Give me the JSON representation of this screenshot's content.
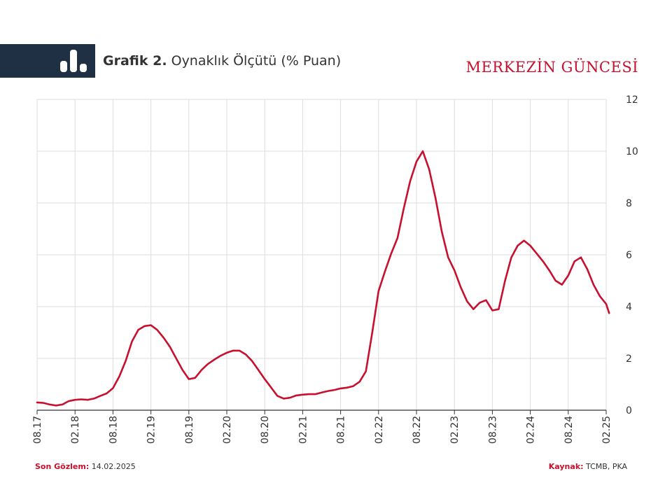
{
  "header": {
    "title_bold": "Grafik 2.",
    "title_rest": "Oynaklık Ölçütü (% Puan)",
    "brand": "MERKEZİN GÜNCESİ",
    "band_color": "#1f2f44",
    "icon": "bar-chart-icon"
  },
  "footer": {
    "last_obs_label": "Son Gözlem:",
    "last_obs_value": "14.02.2025",
    "source_label": "Kaynak:",
    "source_value": "TCMB, PKA"
  },
  "chart_data": {
    "type": "line",
    "ylim": [
      0,
      12
    ],
    "yticks": [
      0,
      2,
      4,
      6,
      8,
      10,
      12
    ],
    "y_axis_side": "right",
    "grid": true,
    "x_tick_labels": [
      "08.17",
      "02.18",
      "08.18",
      "02.19",
      "08.19",
      "02.20",
      "08.20",
      "02.21",
      "08.21",
      "02.22",
      "08.22",
      "02.23",
      "08.23",
      "02.24",
      "08.24",
      "02.25"
    ],
    "x_range": [
      "2017-08",
      "2025-02"
    ],
    "series": [
      {
        "color": "#c8102e",
        "points": [
          [
            "2017-08",
            0.3
          ],
          [
            "2017-09",
            0.28
          ],
          [
            "2017-10",
            0.22
          ],
          [
            "2017-11",
            0.18
          ],
          [
            "2017-12",
            0.22
          ],
          [
            "2018-01",
            0.35
          ],
          [
            "2018-02",
            0.4
          ],
          [
            "2018-03",
            0.42
          ],
          [
            "2018-04",
            0.4
          ],
          [
            "2018-05",
            0.45
          ],
          [
            "2018-06",
            0.55
          ],
          [
            "2018-07",
            0.65
          ],
          [
            "2018-08",
            0.85
          ],
          [
            "2018-09",
            1.3
          ],
          [
            "2018-10",
            1.9
          ],
          [
            "2018-11",
            2.65
          ],
          [
            "2018-12",
            3.1
          ],
          [
            "2019-01",
            3.25
          ],
          [
            "2019-02",
            3.28
          ],
          [
            "2019-03",
            3.1
          ],
          [
            "2019-04",
            2.8
          ],
          [
            "2019-05",
            2.45
          ],
          [
            "2019-06",
            2.0
          ],
          [
            "2019-07",
            1.55
          ],
          [
            "2019-08",
            1.2
          ],
          [
            "2019-09",
            1.25
          ],
          [
            "2019-10",
            1.55
          ],
          [
            "2019-11",
            1.78
          ],
          [
            "2019-12",
            1.95
          ],
          [
            "2020-01",
            2.1
          ],
          [
            "2020-02",
            2.22
          ],
          [
            "2020-03",
            2.3
          ],
          [
            "2020-04",
            2.3
          ],
          [
            "2020-05",
            2.15
          ],
          [
            "2020-06",
            1.9
          ],
          [
            "2020-07",
            1.55
          ],
          [
            "2020-08",
            1.2
          ],
          [
            "2020-09",
            0.88
          ],
          [
            "2020-10",
            0.55
          ],
          [
            "2020-11",
            0.45
          ],
          [
            "2020-12",
            0.48
          ],
          [
            "2021-01",
            0.57
          ],
          [
            "2021-02",
            0.6
          ],
          [
            "2021-03",
            0.62
          ],
          [
            "2021-04",
            0.62
          ],
          [
            "2021-05",
            0.68
          ],
          [
            "2021-06",
            0.74
          ],
          [
            "2021-07",
            0.78
          ],
          [
            "2021-08",
            0.84
          ],
          [
            "2021-09",
            0.87
          ],
          [
            "2021-10",
            0.93
          ],
          [
            "2021-11",
            1.1
          ],
          [
            "2021-12",
            1.5
          ],
          [
            "2022-01",
            3.0
          ],
          [
            "2022-02",
            4.6
          ],
          [
            "2022-03",
            5.35
          ],
          [
            "2022-04",
            6.05
          ],
          [
            "2022-05",
            6.65
          ],
          [
            "2022-06",
            7.8
          ],
          [
            "2022-07",
            8.85
          ],
          [
            "2022-08",
            9.6
          ],
          [
            "2022-09",
            10.0
          ],
          [
            "2022-10",
            9.3
          ],
          [
            "2022-11",
            8.2
          ],
          [
            "2022-12",
            6.9
          ],
          [
            "2023-01",
            5.9
          ],
          [
            "2023-02",
            5.4
          ],
          [
            "2023-03",
            4.75
          ],
          [
            "2023-04",
            4.2
          ],
          [
            "2023-05",
            3.9
          ],
          [
            "2023-06",
            4.15
          ],
          [
            "2023-07",
            4.25
          ],
          [
            "2023-08",
            3.85
          ],
          [
            "2023-09",
            3.9
          ],
          [
            "2023-10",
            5.0
          ],
          [
            "2023-11",
            5.9
          ],
          [
            "2023-12",
            6.35
          ],
          [
            "2024-01",
            6.55
          ],
          [
            "2024-02",
            6.35
          ],
          [
            "2024-03",
            6.05
          ],
          [
            "2024-04",
            5.75
          ],
          [
            "2024-05",
            5.4
          ],
          [
            "2024-06",
            5.0
          ],
          [
            "2024-07",
            4.85
          ],
          [
            "2024-08",
            5.2
          ],
          [
            "2024-09",
            5.75
          ],
          [
            "2024-10",
            5.9
          ],
          [
            "2024-11",
            5.45
          ],
          [
            "2024-12",
            4.85
          ],
          [
            "2025-01",
            4.4
          ],
          [
            "2025-02",
            4.1
          ],
          [
            "2025-02-14",
            3.75
          ]
        ]
      }
    ]
  }
}
